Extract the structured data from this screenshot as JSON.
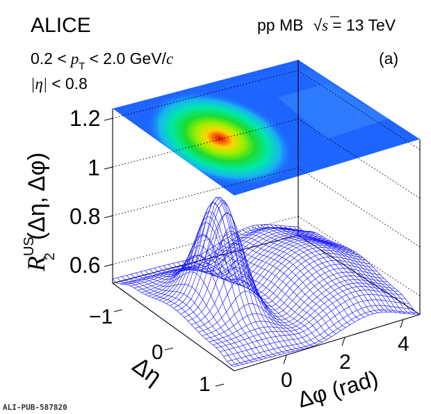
{
  "chart_data": {
    "type": "surface",
    "experiment": "ALICE",
    "system": "pp MB",
    "sqrt_s_label": "s",
    "energy": "= 13 TeV",
    "panel": "(a)",
    "cut_pt": {
      "prefix": "0.2 <",
      "var": "p",
      "sub": "T",
      "suffix": "< 2.0 GeV/",
      "unit_it": "c"
    },
    "cut_eta": {
      "var": "|η|",
      "suffix": "< 0.8"
    },
    "zlabel": {
      "main": "R",
      "sup": "US",
      "sub": "2",
      "rest": "(Δη, Δφ)"
    },
    "xlabel": "Δφ (rad)",
    "ylabel": "Δη",
    "zticks": [
      "1.2",
      "1",
      "0.8",
      "0.6"
    ],
    "zlim": [
      0.55,
      1.25
    ],
    "xticks": [
      "0",
      "2",
      "4"
    ],
    "xlim": [
      -1.5708,
      4.7124
    ],
    "yticks": [
      "−1",
      "0",
      "1"
    ],
    "ylim": [
      -1.6,
      1.6
    ],
    "peak": {
      "deta": 0,
      "dphi": 0,
      "value": 1.02
    },
    "baseline": 0.61,
    "away_side": {
      "dphi": 3.14,
      "value": 0.71
    },
    "projection_plane_z": 1.25,
    "colors": {
      "mesh": "#1a1aff"
    },
    "footer": "ALI-PUB-587820"
  }
}
